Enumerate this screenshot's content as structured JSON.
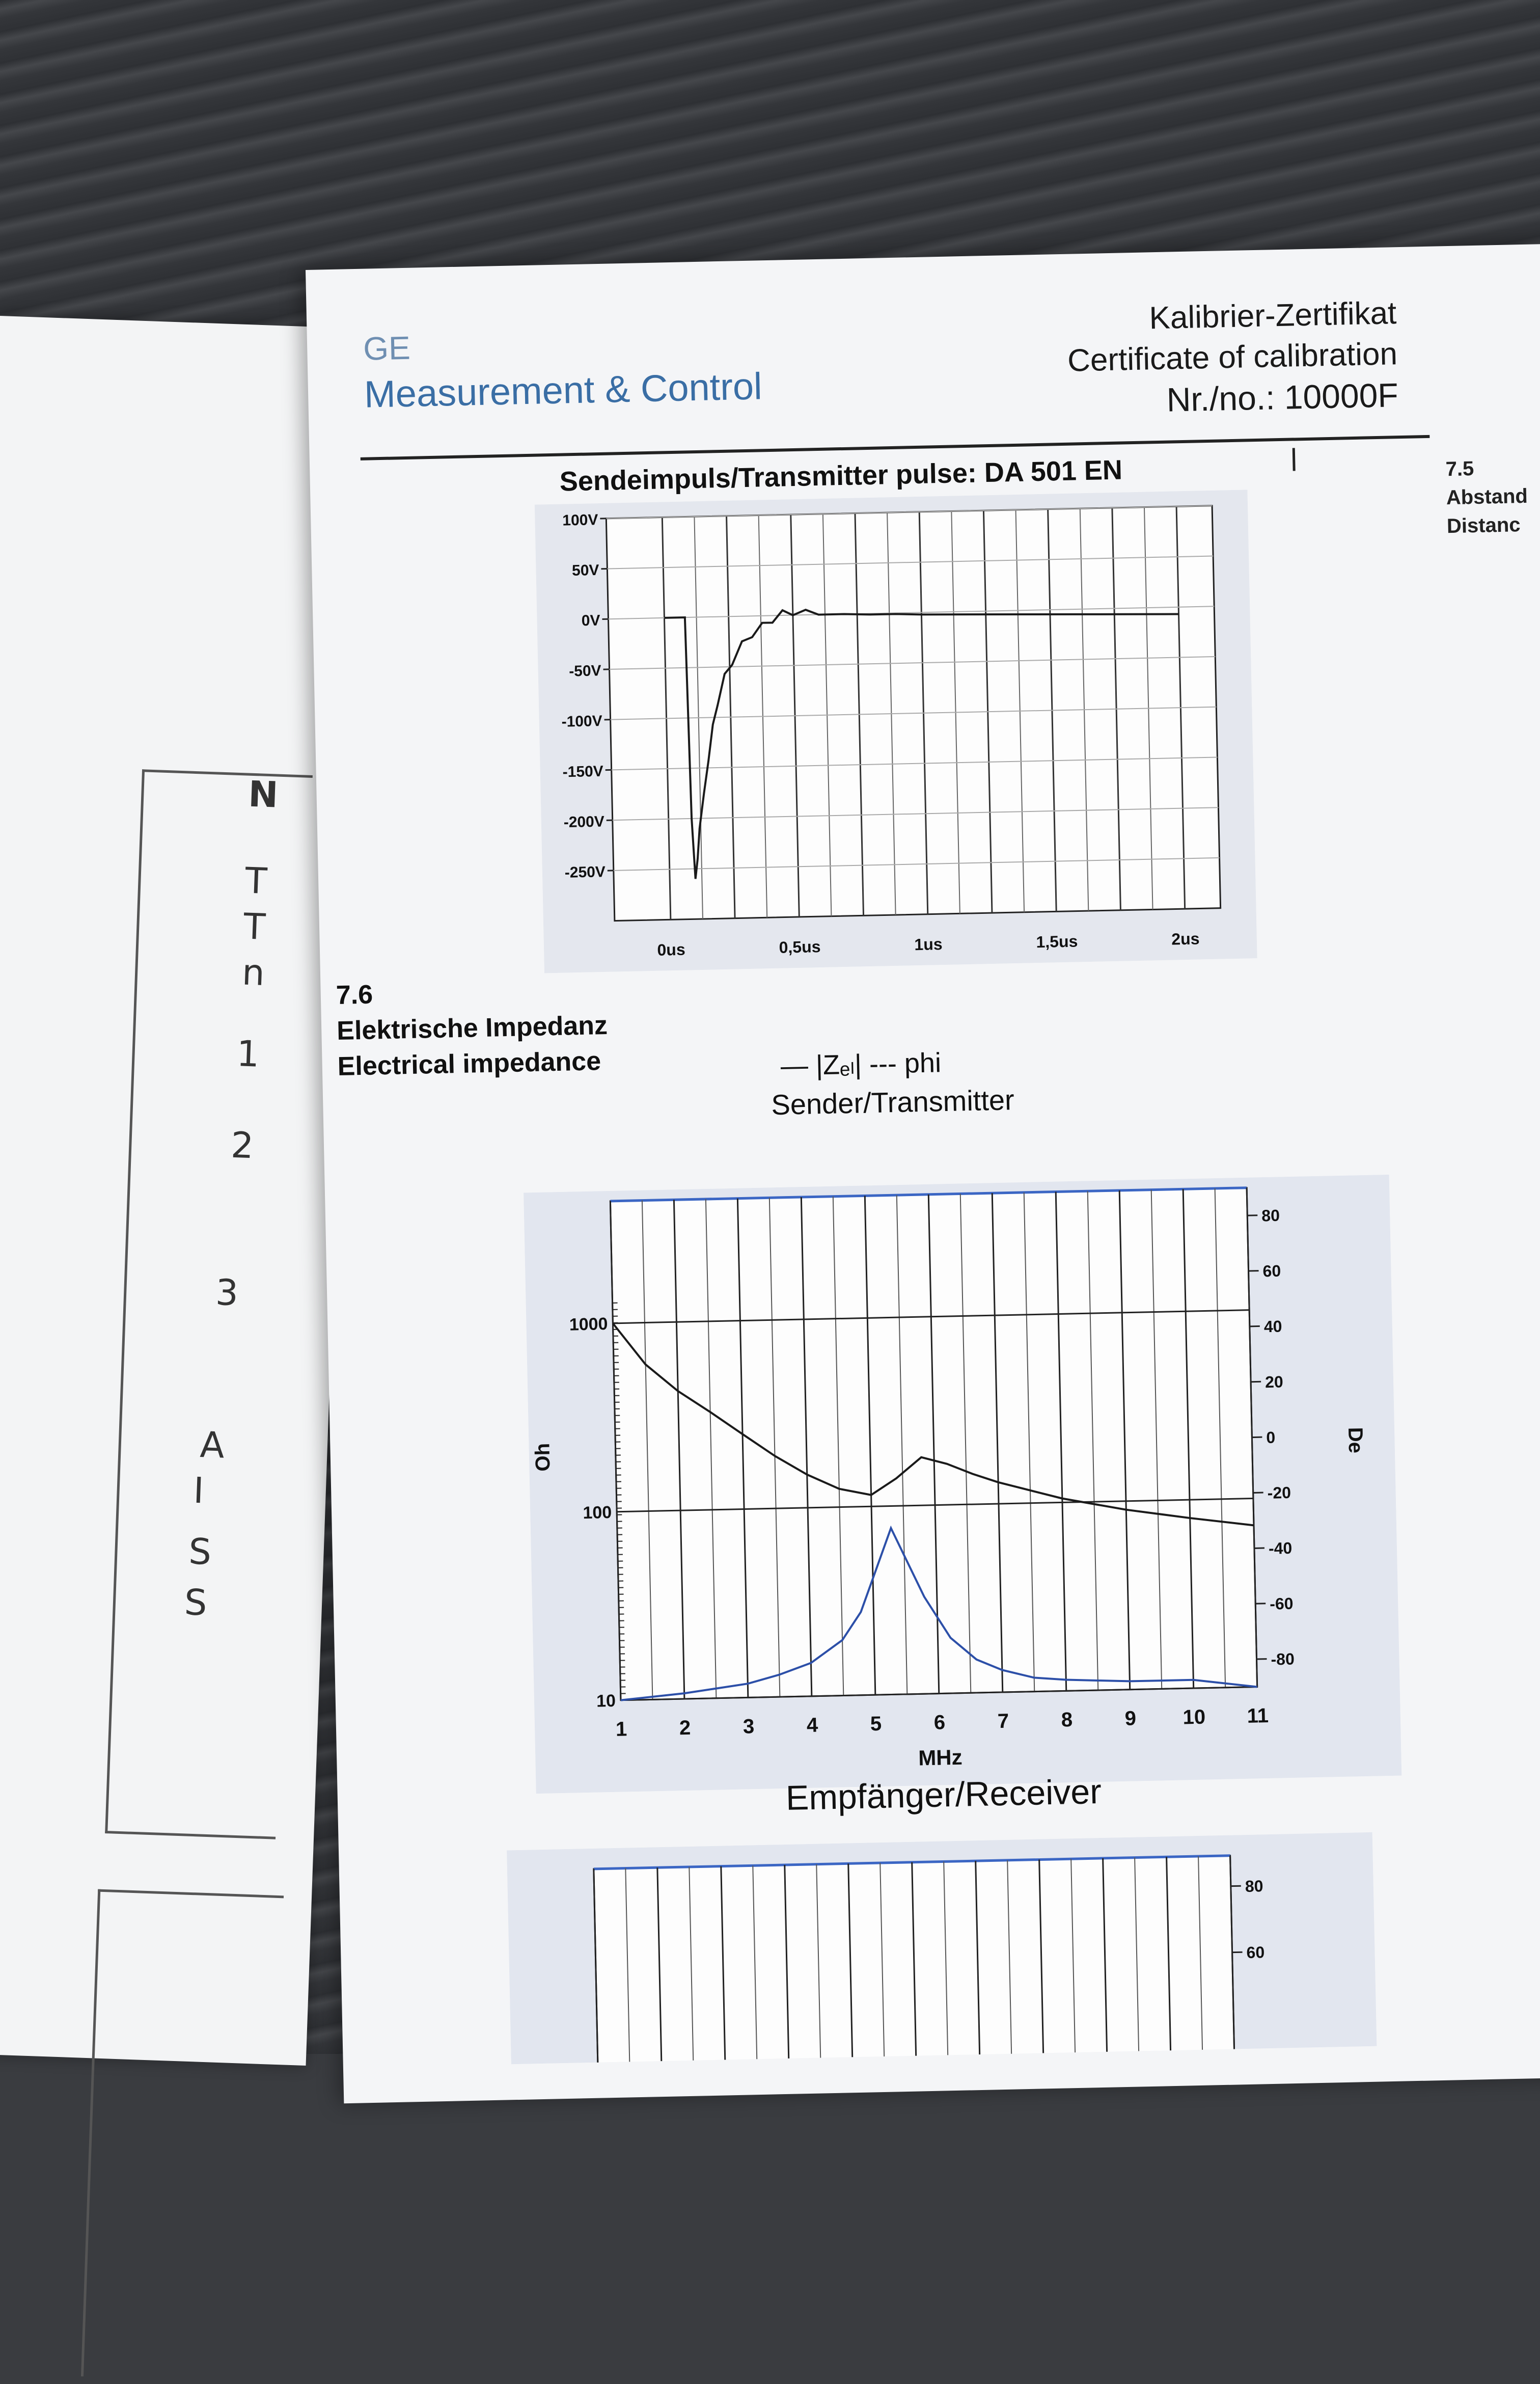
{
  "back_page": {
    "chars": [
      "N",
      "T",
      "T",
      "n",
      "1",
      "2",
      "3",
      "A",
      "I",
      "S",
      "S"
    ]
  },
  "header": {
    "brand_ge": "GE",
    "brand_name": "Measurement & Control",
    "cert_de": "Kalibrier-Zertifikat",
    "cert_en": "Certificate of calibration",
    "cert_number": "Nr./no.: 10000F"
  },
  "side_section": {
    "number": "7.5",
    "line1": "Abstand",
    "line2": "Distanc"
  },
  "pulse_chart": {
    "title": "Sendeimpuls/Transmitter pulse: DA 501 EN",
    "chart_data": {
      "type": "line",
      "x_ticks": [
        "0us",
        "0,5us",
        "1us",
        "1,5us",
        "2us"
      ],
      "y_ticks": [
        "100V",
        "50V",
        "0V",
        "-50V",
        "-100V",
        "-150V",
        "-200V",
        "-250V"
      ],
      "xlim": [
        0,
        2
      ],
      "ylim": [
        -300,
        100
      ],
      "series": [
        {
          "x": [
            0,
            0.08,
            0.09,
            0.1,
            0.11,
            0.12,
            0.14,
            0.16,
            0.18,
            0.2,
            0.23,
            0.26,
            0.3,
            0.34,
            0.38,
            0.42,
            0.46,
            0.5,
            0.55,
            0.6,
            0.7,
            0.8,
            0.9,
            1.0,
            1.2,
            1.4,
            1.6,
            1.8,
            2.0
          ],
          "y": [
            0,
            0,
            -200,
            -260,
            -240,
            -210,
            -175,
            -140,
            -110,
            -85,
            -60,
            -45,
            -28,
            -18,
            -10,
            -4,
            2,
            3,
            2,
            3,
            0,
            -1,
            -1,
            -2,
            -3,
            -4,
            -5,
            -6,
            -7
          ]
        }
      ]
    }
  },
  "impedance": {
    "section_number": "7.6",
    "title_de": "Elektrische Impedanz",
    "title_en": "Electrical impedance",
    "legend": "— |Zₑₗ|   --- phi",
    "sender_label": "Sender/Transmitter",
    "receiver_label": "Empfänger/Receiver",
    "chart_data": {
      "type": "line",
      "x_ticks": [
        "1",
        "2",
        "3",
        "4",
        "5",
        "6",
        "7",
        "8",
        "9",
        "10",
        "11"
      ],
      "xlabel": "MHz",
      "ylabel_left": "Oh",
      "ylabel_right": "De",
      "y_left_ticks": [
        "1000",
        "100",
        "10"
      ],
      "y_right_ticks": [
        "80",
        "60",
        "40",
        "20",
        "0",
        "-20",
        "-40",
        "-60",
        "-80"
      ],
      "xlim": [
        1,
        11
      ],
      "ylim_left": [
        10,
        1000
      ],
      "ylim_right": [
        -90,
        90
      ],
      "yscale_left": "log",
      "series": [
        {
          "axis": "left",
          "color": "#1a1a1a",
          "x": [
            1,
            1.5,
            2,
            2.5,
            3,
            3.5,
            4,
            4.5,
            5,
            5.4,
            5.8,
            6.2,
            6.6,
            7,
            8,
            9,
            10,
            11
          ],
          "y": [
            1000,
            600,
            430,
            330,
            250,
            190,
            150,
            125,
            115,
            140,
            180,
            165,
            145,
            130,
            105,
            90,
            80,
            72
          ]
        },
        {
          "axis": "right",
          "color": "#2c4fa8",
          "x": [
            1,
            2,
            3,
            3.5,
            4,
            4.5,
            4.8,
            5.1,
            5.3,
            5.5,
            5.8,
            6.2,
            6.6,
            7,
            7.5,
            8,
            9,
            10,
            11
          ],
          "y": [
            -90,
            -88,
            -85,
            -82,
            -78,
            -70,
            -60,
            -42,
            -30,
            -40,
            -55,
            -70,
            -78,
            -82,
            -85,
            -86,
            -87,
            -87,
            -90
          ]
        }
      ]
    }
  },
  "receiver_chart": {
    "y_right_ticks": [
      "80",
      "60"
    ]
  }
}
